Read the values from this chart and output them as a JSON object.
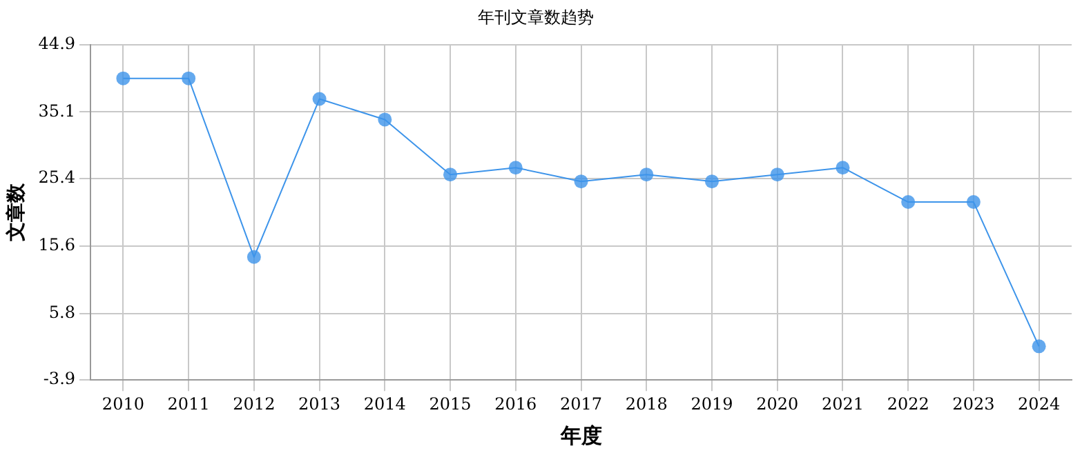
{
  "chart_data": {
    "type": "line",
    "title": "年刊文章数趋势",
    "xlabel": "年度",
    "ylabel": "文章数",
    "categories": [
      "2010",
      "2011",
      "2012",
      "2013",
      "2014",
      "2015",
      "2016",
      "2017",
      "2018",
      "2019",
      "2020",
      "2021",
      "2022",
      "2023",
      "2024"
    ],
    "series": [
      {
        "color": "#3d94ea",
        "values": [
          40,
          40,
          14,
          37,
          34,
          26,
          27,
          25,
          26,
          25,
          26,
          27,
          22,
          22,
          1
        ]
      }
    ],
    "ylim": [
      -3.9,
      44.9
    ],
    "yticks": [
      -3.9,
      5.8,
      15.6,
      25.4,
      35.1,
      44.9
    ],
    "grid": true,
    "legend": false,
    "marker": "circle",
    "line_style": "solid"
  }
}
